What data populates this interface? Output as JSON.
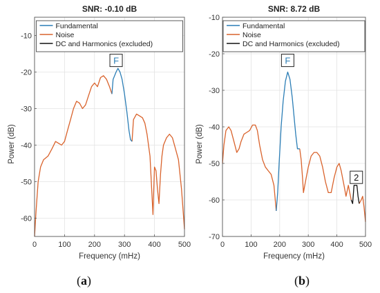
{
  "chart_data": [
    {
      "type": "line",
      "panel_label": "a",
      "title": "SNR:  -0.10 dB",
      "xlabel": "Frequency (mHz)",
      "ylabel": "Power (dB)",
      "xlim": [
        0,
        500
      ],
      "ylim": [
        -65,
        -5
      ],
      "xticks": [
        0,
        100,
        200,
        300,
        400,
        500
      ],
      "yticks": [
        -60,
        -50,
        -40,
        -30,
        -20,
        -10
      ],
      "grid": true,
      "legend": {
        "placement": "top",
        "entries": [
          "Fundamental",
          "Noise",
          "DC and Harmonics (excluded)"
        ]
      },
      "colors": {
        "Fundamental": "#2a7db5",
        "Noise": "#d9622b",
        "DC and Harmonics (excluded)": "#111111"
      },
      "series": [
        {
          "name": "Noise",
          "segments": [
            [
              [
                0,
                -65
              ],
              [
                5,
                -58
              ],
              [
                12,
                -50
              ],
              [
                20,
                -46
              ],
              [
                30,
                -44
              ],
              [
                45,
                -43
              ],
              [
                58,
                -41
              ],
              [
                70,
                -39
              ],
              [
                80,
                -39.5
              ],
              [
                90,
                -40
              ],
              [
                100,
                -39
              ],
              [
                110,
                -36
              ],
              [
                120,
                -33
              ],
              [
                130,
                -30
              ],
              [
                140,
                -28
              ],
              [
                150,
                -28.5
              ],
              [
                160,
                -30
              ],
              [
                170,
                -29
              ],
              [
                180,
                -26.5
              ],
              [
                190,
                -24
              ],
              [
                200,
                -23
              ],
              [
                210,
                -24
              ],
              [
                220,
                -21.5
              ],
              [
                230,
                -21
              ],
              [
                240,
                -22
              ],
              [
                250,
                -24
              ],
              [
                258,
                -26
              ]
            ],
            [
              [
                325,
                -39
              ],
              [
                330,
                -33
              ],
              [
                340,
                -31.5
              ],
              [
                350,
                -32
              ],
              [
                360,
                -32.5
              ],
              [
                368,
                -34
              ],
              [
                375,
                -37
              ],
              [
                385,
                -43
              ],
              [
                395,
                -59
              ],
              [
                400,
                -46
              ],
              [
                405,
                -47
              ],
              [
                410,
                -52
              ],
              [
                415,
                -56
              ],
              [
                420,
                -48
              ],
              [
                425,
                -43
              ],
              [
                430,
                -40
              ],
              [
                440,
                -38
              ],
              [
                450,
                -37
              ],
              [
                460,
                -38
              ],
              [
                470,
                -41
              ],
              [
                480,
                -44
              ],
              [
                490,
                -52
              ],
              [
                500,
                -63
              ]
            ]
          ]
        },
        {
          "name": "Fundamental",
          "segments": [
            [
              [
                258,
                -26
              ],
              [
                262,
                -22
              ],
              [
                267,
                -21
              ],
              [
                272,
                -20
              ],
              [
                278,
                -19
              ],
              [
                285,
                -20
              ],
              [
                292,
                -22
              ],
              [
                300,
                -26
              ],
              [
                308,
                -31
              ],
              [
                315,
                -36
              ],
              [
                320,
                -38.5
              ],
              [
                325,
                -39
              ]
            ]
          ]
        }
      ],
      "annotations": [
        {
          "text": "F",
          "x": 272,
          "y": -17
        }
      ]
    },
    {
      "type": "line",
      "panel_label": "b",
      "title": "SNR:   8.72 dB",
      "xlabel": "Frequency (mHz)",
      "ylabel": "Power (dB)",
      "xlim": [
        0,
        500
      ],
      "ylim": [
        -70,
        -10
      ],
      "xticks": [
        0,
        100,
        200,
        300,
        400,
        500
      ],
      "yticks": [
        -70,
        -60,
        -50,
        -40,
        -30,
        -20,
        -10
      ],
      "grid": true,
      "legend": {
        "placement": "top",
        "entries": [
          "Fundamental",
          "Noise",
          "DC and Harmonics (excluded)"
        ]
      },
      "colors": {
        "Fundamental": "#2a7db5",
        "Noise": "#d9622b",
        "DC and Harmonics (excluded)": "#111111"
      },
      "series": [
        {
          "name": "Noise",
          "segments": [
            [
              [
                0,
                -50
              ],
              [
                5,
                -45
              ],
              [
                12,
                -41
              ],
              [
                22,
                -40
              ],
              [
                30,
                -41
              ],
              [
                40,
                -44
              ],
              [
                50,
                -47
              ],
              [
                58,
                -46
              ],
              [
                65,
                -44
              ],
              [
                75,
                -42
              ],
              [
                85,
                -41.5
              ],
              [
                95,
                -41
              ],
              [
                105,
                -39.5
              ],
              [
                115,
                -39.5
              ],
              [
                122,
                -41
              ],
              [
                130,
                -45
              ],
              [
                140,
                -49
              ],
              [
                150,
                -51
              ],
              [
                160,
                -52
              ],
              [
                170,
                -53
              ],
              [
                180,
                -56
              ],
              [
                188,
                -63
              ]
            ],
            [
              [
                270,
                -46
              ],
              [
                275,
                -49
              ],
              [
                280,
                -54
              ],
              [
                283,
                -58
              ],
              [
                290,
                -55
              ],
              [
                300,
                -51
              ],
              [
                310,
                -48
              ],
              [
                320,
                -47
              ],
              [
                330,
                -47
              ],
              [
                340,
                -48
              ],
              [
                350,
                -51
              ],
              [
                360,
                -55
              ],
              [
                370,
                -58
              ],
              [
                380,
                -58
              ],
              [
                390,
                -54
              ],
              [
                400,
                -51
              ],
              [
                408,
                -50
              ],
              [
                415,
                -52
              ],
              [
                425,
                -56
              ],
              [
                432,
                -59
              ],
              [
                440,
                -56
              ],
              [
                445,
                -58
              ],
              [
                450,
                -60
              ]
            ],
            [
              [
                478,
                -61
              ],
              [
                485,
                -60
              ],
              [
                490,
                -59
              ],
              [
                495,
                -62
              ],
              [
                500,
                -66
              ]
            ]
          ]
        },
        {
          "name": "Fundamental",
          "segments": [
            [
              [
                188,
                -63
              ],
              [
                193,
                -58
              ],
              [
                198,
                -50
              ],
              [
                205,
                -40
              ],
              [
                212,
                -33
              ],
              [
                220,
                -27.5
              ],
              [
                228,
                -25
              ],
              [
                236,
                -27
              ],
              [
                244,
                -32
              ],
              [
                250,
                -37
              ],
              [
                256,
                -42
              ],
              [
                262,
                -46
              ],
              [
                270,
                -46
              ]
            ]
          ]
        },
        {
          "name": "DC and Harmonics (excluded)",
          "segments": [
            [
              [
                450,
                -60
              ],
              [
                455,
                -61
              ],
              [
                460,
                -56
              ],
              [
                465,
                -56
              ],
              [
                470,
                -56
              ],
              [
                474,
                -59
              ],
              [
                478,
                -61
              ]
            ]
          ]
        }
      ],
      "annotations": [
        {
          "text": "F",
          "x": 228,
          "y": -22
        },
        {
          "text": "2",
          "x": 468,
          "y": -54
        }
      ]
    }
  ]
}
